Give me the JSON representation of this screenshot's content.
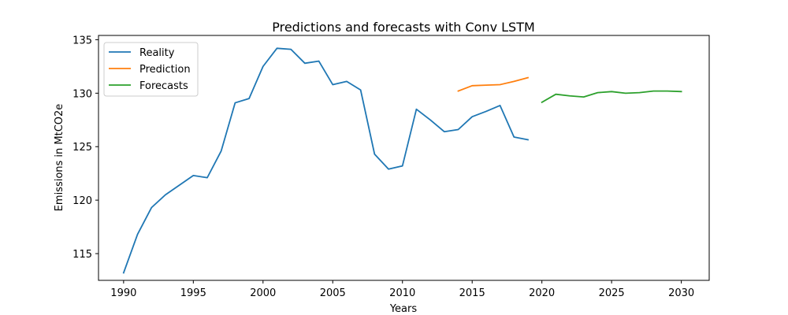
{
  "chart_data": {
    "type": "line",
    "title": "Predictions and forecasts with Conv LSTM",
    "xlabel": "Years",
    "ylabel": "Emissions in MtCO2e",
    "xlim": [
      1988.2,
      2032.0
    ],
    "ylim": [
      112.5,
      135.4
    ],
    "xticks": [
      1990,
      1995,
      2000,
      2005,
      2010,
      2015,
      2020,
      2025,
      2030
    ],
    "yticks": [
      115,
      120,
      125,
      130,
      135
    ],
    "grid": false,
    "legend_position": "top-left",
    "series": [
      {
        "name": "Reality",
        "color": "#1f77b4",
        "x": [
          1990,
          1991,
          1992,
          1993,
          1994,
          1995,
          1996,
          1997,
          1998,
          1999,
          2000,
          2001,
          2002,
          2003,
          2004,
          2005,
          2006,
          2007,
          2008,
          2009,
          2010,
          2011,
          2012,
          2013,
          2014,
          2015,
          2016,
          2017,
          2018,
          2019
        ],
        "y": [
          113.2,
          116.8,
          119.3,
          120.5,
          121.4,
          122.3,
          122.1,
          124.6,
          129.1,
          129.5,
          132.5,
          134.2,
          134.1,
          132.8,
          133.0,
          130.8,
          131.1,
          130.3,
          124.3,
          122.9,
          123.2,
          128.5,
          127.5,
          126.4,
          126.6,
          127.8,
          128.3,
          128.85,
          125.9,
          125.65
        ]
      },
      {
        "name": "Prediction",
        "color": "#ff7f0e",
        "x": [
          2014,
          2015,
          2016,
          2017,
          2018,
          2019
        ],
        "y": [
          130.2,
          130.7,
          130.75,
          130.8,
          131.1,
          131.45
        ]
      },
      {
        "name": "Forecasts",
        "color": "#2ca02c",
        "x": [
          2020,
          2021,
          2022,
          2023,
          2024,
          2025,
          2026,
          2027,
          2028,
          2029,
          2030
        ],
        "y": [
          129.15,
          129.9,
          129.75,
          129.65,
          130.05,
          130.15,
          130.0,
          130.05,
          130.2,
          130.2,
          130.15
        ]
      }
    ]
  }
}
